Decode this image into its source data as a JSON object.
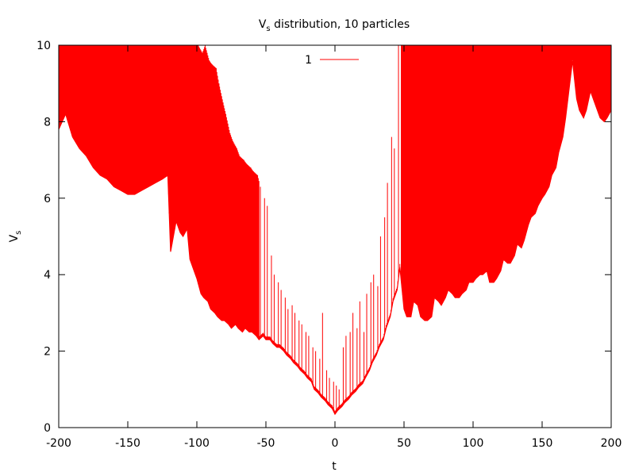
{
  "chart_data": {
    "type": "line",
    "title": "V",
    "title_subscript": "s",
    "title_rest": " distribution, 10 particles",
    "xlabel": "t",
    "ylabel": "V",
    "ylabel_subscript": "s",
    "xlim": [
      -200,
      200
    ],
    "ylim": [
      0,
      10
    ],
    "xticks": [
      -200,
      -150,
      -100,
      -50,
      0,
      50,
      100,
      150,
      200
    ],
    "yticks": [
      0,
      2,
      4,
      6,
      8,
      10
    ],
    "grid": false,
    "legend_position": "top-center",
    "series": [
      {
        "name": "1",
        "color": "#ff0000",
        "envelope": {
          "x": [
            -200,
            -195,
            -190,
            -185,
            -180,
            -175,
            -170,
            -165,
            -160,
            -155,
            -150,
            -145,
            -140,
            -135,
            -130,
            -125,
            -121,
            -119,
            -117,
            -115,
            -112,
            -110,
            -107,
            -105,
            -102,
            -100,
            -97,
            -95,
            -92,
            -90,
            -87,
            -85,
            -82,
            -80,
            -77,
            -75,
            -72,
            -70,
            -67,
            -65,
            -62,
            -60,
            -57,
            -55,
            -52,
            -50,
            -47,
            -45,
            -42,
            -40,
            -37,
            -35,
            -32,
            -30,
            -27,
            -25,
            -22,
            -20,
            -17,
            -15,
            -12,
            -10,
            -7,
            -5,
            -2,
            0,
            2,
            5,
            7,
            10,
            12,
            15,
            17,
            20,
            22,
            25,
            27,
            30,
            32,
            35,
            37,
            40,
            42,
            45,
            47,
            50,
            52,
            55,
            57,
            60,
            62,
            65,
            67,
            70,
            72,
            75,
            77,
            80,
            82,
            85,
            87,
            90,
            92,
            95,
            97,
            100,
            102,
            105,
            107,
            110,
            112,
            115,
            117,
            120,
            122,
            125,
            127,
            130,
            132,
            135,
            137,
            140,
            142,
            145,
            147,
            150,
            152,
            155,
            157,
            160,
            162,
            165,
            167,
            170,
            172,
            175,
            177,
            180,
            182,
            185,
            187,
            190,
            192,
            195,
            197,
            200
          ],
          "y": [
            7.8,
            8.2,
            7.6,
            7.3,
            7.1,
            6.8,
            6.6,
            6.5,
            6.3,
            6.2,
            6.1,
            6.1,
            6.2,
            6.3,
            6.4,
            6.5,
            6.6,
            4.6,
            5.0,
            5.4,
            5.1,
            5.0,
            5.2,
            4.4,
            4.1,
            3.9,
            3.5,
            3.4,
            3.3,
            3.1,
            3.0,
            2.9,
            2.8,
            2.8,
            2.7,
            2.6,
            2.7,
            2.6,
            2.5,
            2.6,
            2.5,
            2.5,
            2.4,
            2.3,
            2.4,
            2.3,
            2.3,
            2.2,
            2.1,
            2.1,
            2.0,
            1.9,
            1.8,
            1.7,
            1.6,
            1.5,
            1.4,
            1.3,
            1.2,
            1.0,
            0.9,
            0.8,
            0.7,
            0.6,
            0.5,
            0.35,
            0.45,
            0.55,
            0.65,
            0.75,
            0.85,
            0.95,
            1.05,
            1.15,
            1.3,
            1.5,
            1.7,
            1.9,
            2.1,
            2.3,
            2.6,
            2.9,
            3.3,
            3.6,
            4.2,
            3.1,
            2.9,
            2.9,
            3.3,
            3.2,
            2.9,
            2.8,
            2.8,
            2.9,
            3.4,
            3.3,
            3.2,
            3.4,
            3.6,
            3.5,
            3.4,
            3.4,
            3.5,
            3.6,
            3.8,
            3.8,
            3.9,
            4.0,
            4.0,
            4.1,
            3.8,
            3.8,
            3.9,
            4.1,
            4.4,
            4.3,
            4.3,
            4.5,
            4.8,
            4.7,
            4.9,
            5.3,
            5.5,
            5.6,
            5.8,
            6.0,
            6.1,
            6.3,
            6.6,
            6.8,
            7.2,
            7.6,
            8.1,
            9.0,
            9.6,
            8.6,
            8.3,
            8.1,
            8.3,
            8.8,
            8.6,
            8.3,
            8.1,
            8.0,
            8.1,
            8.3
          ]
        },
        "spikes": [
          -198,
          -193,
          -188,
          -183,
          -178,
          -173,
          -168,
          -163,
          -158,
          -153,
          -148,
          -143,
          -138,
          -133,
          -128,
          -124,
          -120,
          -118,
          -116,
          -113,
          -111,
          -109,
          -106,
          -104,
          -101,
          -99,
          -96,
          -94,
          -91,
          -89,
          -86,
          -84,
          -81,
          -79,
          -76,
          -74,
          -71,
          -69,
          -66,
          -64,
          -61,
          -59,
          -56,
          -54,
          -51,
          -49,
          -46,
          -44,
          -41,
          -39,
          -36,
          -34,
          -31,
          -29,
          -26,
          -24,
          -21,
          -19,
          -16,
          -14,
          -11,
          -9,
          -6,
          -4,
          -1,
          1,
          3,
          6,
          8,
          11,
          13,
          16,
          18,
          21,
          23,
          26,
          28,
          31,
          33,
          36,
          38,
          41,
          43,
          46,
          48,
          51,
          53,
          56,
          58,
          61,
          63,
          66,
          68,
          71,
          73,
          76,
          78,
          81,
          83,
          86,
          88,
          91,
          93,
          96,
          98,
          101,
          103,
          106,
          108,
          111,
          113,
          116,
          118,
          121,
          123,
          126,
          128,
          131,
          133,
          136,
          138,
          141,
          143,
          146,
          148,
          151,
          153,
          156,
          158,
          161,
          163,
          166,
          168,
          171,
          173,
          176,
          178,
          181,
          183,
          186,
          188,
          191,
          193,
          196,
          198
        ],
        "spike_tops": [
          10,
          10,
          10,
          10,
          10,
          10,
          10,
          10,
          10,
          10,
          10,
          10,
          10,
          10,
          10,
          10,
          10,
          10,
          10,
          10,
          10,
          10,
          10,
          10,
          10,
          10,
          9.8,
          10,
          9.6,
          9.5,
          9.4,
          9.0,
          8.5,
          8.2,
          7.7,
          7.5,
          7.3,
          7.1,
          7.0,
          6.9,
          6.8,
          6.7,
          6.6,
          6.3,
          6.0,
          5.8,
          4.5,
          4.0,
          3.8,
          3.6,
          3.4,
          3.1,
          3.2,
          3.0,
          2.8,
          2.7,
          2.5,
          2.4,
          2.1,
          2.0,
          1.8,
          3.0,
          1.5,
          1.3,
          1.2,
          1.1,
          1.0,
          2.1,
          2.4,
          2.5,
          3.0,
          2.6,
          3.3,
          2.5,
          3.5,
          3.8,
          4.0,
          3.7,
          5.0,
          5.5,
          6.4,
          7.6,
          7.3,
          10,
          10,
          10,
          10,
          10,
          10,
          10,
          10,
          10,
          10,
          10,
          10,
          10,
          10,
          10,
          10,
          10,
          10,
          10,
          10,
          10,
          10,
          10,
          10,
          10,
          10,
          10,
          10,
          10,
          10,
          10,
          10,
          10,
          10,
          10,
          10,
          10,
          10,
          10,
          10,
          10,
          10,
          10,
          10,
          10,
          10,
          10,
          10,
          10,
          10,
          10,
          10,
          10,
          10,
          10,
          10,
          10,
          10,
          10,
          10,
          10,
          10,
          10,
          10,
          10,
          10
        ]
      }
    ]
  }
}
